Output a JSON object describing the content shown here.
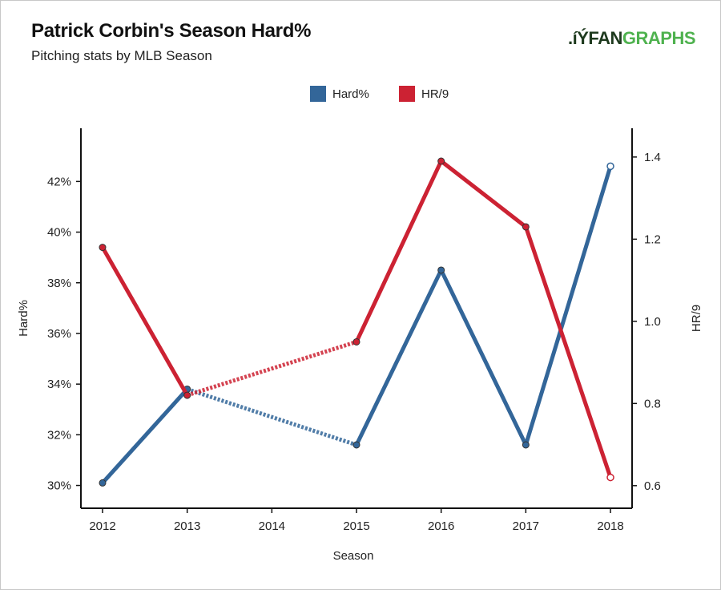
{
  "header": {
    "title": "Patrick Corbin's Season Hard%",
    "subtitle": "Pitching stats by MLB Season",
    "logo_prefix": ".íÝFAN",
    "logo_suffix": "GRAPHS"
  },
  "colors": {
    "hard_pct": "#336699",
    "hr9": "#cc2233",
    "logo_green": "#4fb24f"
  },
  "chart_data": {
    "type": "line",
    "title": "Patrick Corbin's Season Hard%",
    "subtitle": "Pitching stats by MLB Season",
    "xlabel": "Season",
    "ylabel_left": "Hard%",
    "ylabel_right": "HR/9",
    "categories": [
      "2012",
      "2013",
      "2014",
      "2015",
      "2016",
      "2017",
      "2018"
    ],
    "left_ticks": [
      "30%",
      "32%",
      "34%",
      "36%",
      "38%",
      "40%",
      "42%"
    ],
    "right_ticks": [
      "0.6",
      "0.8",
      "1.0",
      "1.2",
      "1.4"
    ],
    "ylim_left": [
      29.1,
      44.1
    ],
    "ylim_right": [
      0.545,
      1.47
    ],
    "legend_position": "top-center",
    "grid": false,
    "series": [
      {
        "name": "Hard%",
        "axis": "left",
        "color": "#336699",
        "points": [
          {
            "x": "2012",
            "y": 30.1
          },
          {
            "x": "2013",
            "y": 33.8
          },
          {
            "x": "2015",
            "y": 31.6
          },
          {
            "x": "2016",
            "y": 38.5
          },
          {
            "x": "2017",
            "y": 31.6
          },
          {
            "x": "2018",
            "y": 42.6
          }
        ]
      },
      {
        "name": "HR/9",
        "axis": "right",
        "color": "#cc2233",
        "points": [
          {
            "x": "2012",
            "y": 1.18
          },
          {
            "x": "2013",
            "y": 0.82
          },
          {
            "x": "2015",
            "y": 0.95
          },
          {
            "x": "2016",
            "y": 1.39
          },
          {
            "x": "2017",
            "y": 1.23
          },
          {
            "x": "2018",
            "y": 0.62
          }
        ]
      }
    ]
  }
}
